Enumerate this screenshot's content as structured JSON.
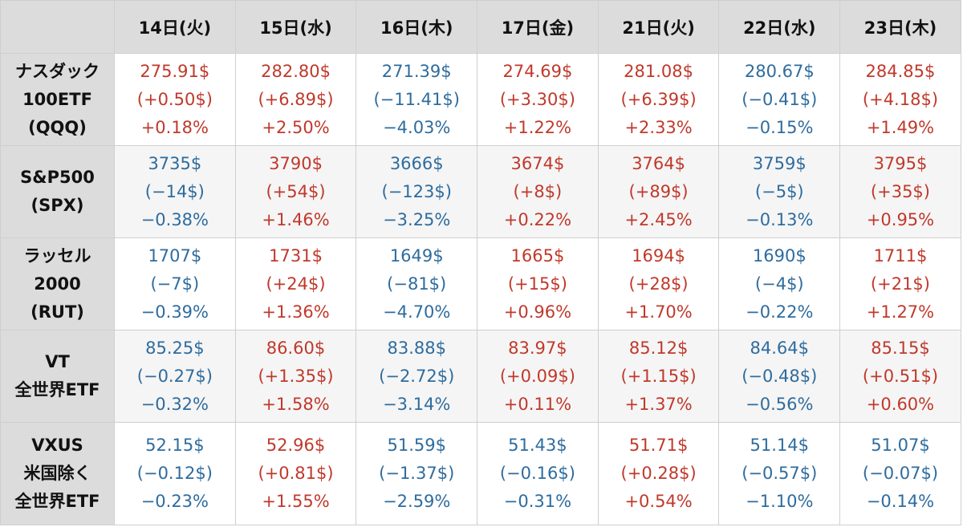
{
  "dates": [
    "14日(火)",
    "15日(水)",
    "16日(木)",
    "17日(金)",
    "21日(火)",
    "22日(水)",
    "23日(木)"
  ],
  "colors": {
    "up": "#c0392b",
    "down": "#2e6c9e",
    "header_bg": "#dcdcdc"
  },
  "rows": [
    {
      "label": [
        "ナスダック",
        "100ETF",
        "(QQQ)"
      ],
      "cells": [
        {
          "dir": "up",
          "price": "275.91$",
          "change": "(+0.50$)",
          "pct": "+0.18%"
        },
        {
          "dir": "up",
          "price": "282.80$",
          "change": "(+6.89$)",
          "pct": "+2.50%"
        },
        {
          "dir": "down",
          "price": "271.39$",
          "change": "(−11.41$)",
          "pct": "−4.03%"
        },
        {
          "dir": "up",
          "price": "274.69$",
          "change": "(+3.30$)",
          "pct": "+1.22%"
        },
        {
          "dir": "up",
          "price": "281.08$",
          "change": "(+6.39$)",
          "pct": "+2.33%"
        },
        {
          "dir": "down",
          "price": "280.67$",
          "change": "(−0.41$)",
          "pct": "−0.15%"
        },
        {
          "dir": "up",
          "price": "284.85$",
          "change": "(+4.18$)",
          "pct": "+1.49%"
        }
      ]
    },
    {
      "label": [
        "S&P500",
        "(SPX)"
      ],
      "cells": [
        {
          "dir": "down",
          "price": "3735$",
          "change": "(−14$)",
          "pct": "−0.38%"
        },
        {
          "dir": "up",
          "price": "3790$",
          "change": "(+54$)",
          "pct": "+1.46%"
        },
        {
          "dir": "down",
          "price": "3666$",
          "change": "(−123$)",
          "pct": "−3.25%"
        },
        {
          "dir": "up",
          "price": "3674$",
          "change": "(+8$)",
          "pct": "+0.22%"
        },
        {
          "dir": "up",
          "price": "3764$",
          "change": "(+89$)",
          "pct": "+2.45%"
        },
        {
          "dir": "down",
          "price": "3759$",
          "change": "(−5$)",
          "pct": "−0.13%"
        },
        {
          "dir": "up",
          "price": "3795$",
          "change": "(+35$)",
          "pct": "+0.95%"
        }
      ]
    },
    {
      "label": [
        "ラッセル",
        "2000",
        "(RUT)"
      ],
      "cells": [
        {
          "dir": "down",
          "price": "1707$",
          "change": "(−7$)",
          "pct": "−0.39%"
        },
        {
          "dir": "up",
          "price": "1731$",
          "change": "(+24$)",
          "pct": "+1.36%"
        },
        {
          "dir": "down",
          "price": "1649$",
          "change": "(−81$)",
          "pct": "−4.70%"
        },
        {
          "dir": "up",
          "price": "1665$",
          "change": "(+15$)",
          "pct": "+0.96%"
        },
        {
          "dir": "up",
          "price": "1694$",
          "change": "(+28$)",
          "pct": "+1.70%"
        },
        {
          "dir": "down",
          "price": "1690$",
          "change": "(−4$)",
          "pct": "−0.22%"
        },
        {
          "dir": "up",
          "price": "1711$",
          "change": "(+21$)",
          "pct": "+1.27%"
        }
      ]
    },
    {
      "label": [
        "VT",
        "全世界ETF"
      ],
      "cells": [
        {
          "dir": "down",
          "price": "85.25$",
          "change": "(−0.27$)",
          "pct": "−0.32%"
        },
        {
          "dir": "up",
          "price": "86.60$",
          "change": "(+1.35$)",
          "pct": "+1.58%"
        },
        {
          "dir": "down",
          "price": "83.88$",
          "change": "(−2.72$)",
          "pct": "−3.14%"
        },
        {
          "dir": "up",
          "price": "83.97$",
          "change": "(+0.09$)",
          "pct": "+0.11%"
        },
        {
          "dir": "up",
          "price": "85.12$",
          "change": "(+1.15$)",
          "pct": "+1.37%"
        },
        {
          "dir": "down",
          "price": "84.64$",
          "change": "(−0.48$)",
          "pct": "−0.56%"
        },
        {
          "dir": "up",
          "price": "85.15$",
          "change": "(+0.51$)",
          "pct": "+0.60%"
        }
      ]
    },
    {
      "label": [
        "VXUS",
        "米国除く",
        "全世界ETF"
      ],
      "cells": [
        {
          "dir": "down",
          "price": "52.15$",
          "change": "(−0.12$)",
          "pct": "−0.23%"
        },
        {
          "dir": "up",
          "price": "52.96$",
          "change": "(+0.81$)",
          "pct": "+1.55%"
        },
        {
          "dir": "down",
          "price": "51.59$",
          "change": "(−1.37$)",
          "pct": "−2.59%"
        },
        {
          "dir": "down",
          "price": "51.43$",
          "change": "(−0.16$)",
          "pct": "−0.31%"
        },
        {
          "dir": "up",
          "price": "51.71$",
          "change": "(+0.28$)",
          "pct": "+0.54%"
        },
        {
          "dir": "down",
          "price": "51.14$",
          "change": "(−0.57$)",
          "pct": "−1.10%"
        },
        {
          "dir": "down",
          "price": "51.07$",
          "change": "(−0.07$)",
          "pct": "−0.14%"
        }
      ]
    }
  ]
}
